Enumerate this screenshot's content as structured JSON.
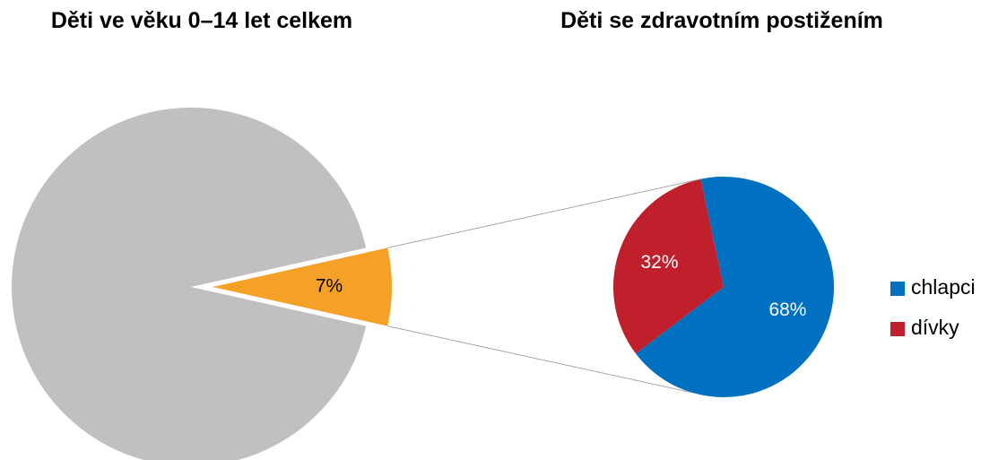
{
  "chart_data": [
    {
      "type": "pie",
      "title": "Děti ve věku 0–14 let celkem",
      "values": [
        93,
        7
      ],
      "value_labels": [
        null,
        "7%"
      ],
      "colors": [
        "#c0c0c0",
        "#f5a128"
      ]
    },
    {
      "type": "pie",
      "title": "Děti se zdravotním postižením",
      "categories": [
        "chlapci",
        "dívky"
      ],
      "values": [
        68,
        32
      ],
      "value_labels": [
        "68%",
        "32%"
      ],
      "colors": [
        "#0070c0",
        "#c0202b"
      ],
      "legend": "right"
    }
  ]
}
